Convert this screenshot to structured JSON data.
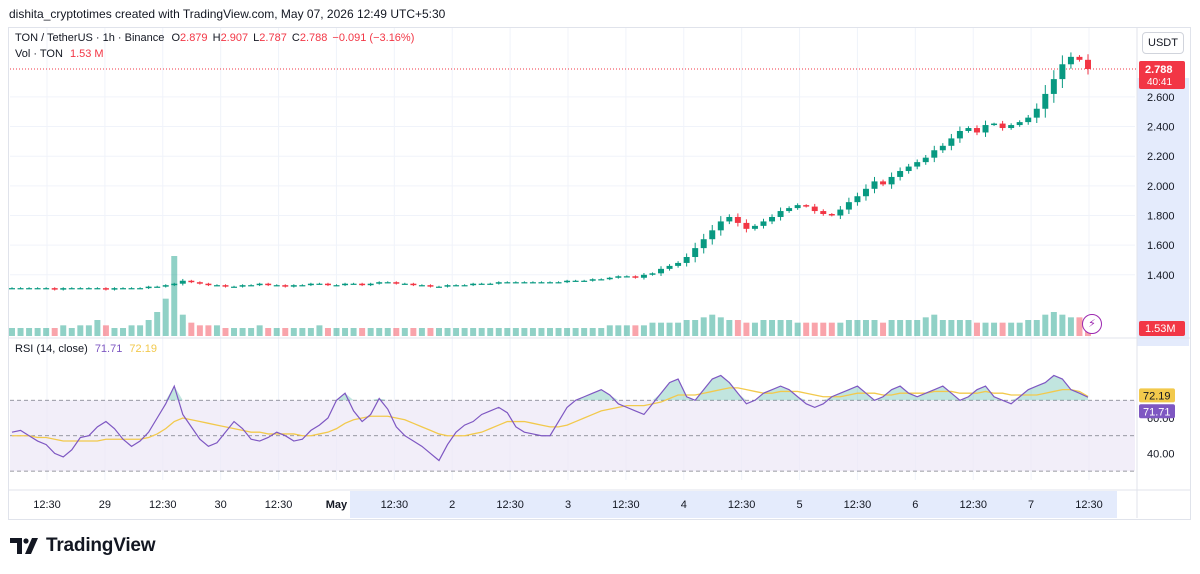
{
  "caption": "dishita_cryptotimes created with TradingView.com, May 07, 2026 12:49 UTC+5:30",
  "legend": {
    "symbol": "TON / TetherUS · 1h · Binance",
    "o_label": "O",
    "o_value": "2.879",
    "h_label": "H",
    "h_value": "2.907",
    "l_label": "L",
    "l_value": "2.787",
    "c_label": "C",
    "c_value": "2.788",
    "change": "−0.091 (−3.16%)",
    "vol_label": "Vol · TON",
    "vol_value": "1.53 M",
    "rsi_label": "RSI (14, close)",
    "rsi_value": "71.71",
    "rsi_ma_value": "72.19"
  },
  "currency_button": "USDT",
  "brand": "TradingView",
  "colors": {
    "up": "#089981",
    "down": "#f23645",
    "rsi_line": "#7e57c2",
    "rsi_ma": "#f2c94c",
    "rsi_band": "#ede7f6",
    "axis_text": "#131722",
    "grid": "#f0f3fa"
  },
  "chart_data": {
    "type": "candlestick",
    "price_axis": {
      "ticks": [
        "1.400",
        "1.600",
        "1.800",
        "2.000",
        "2.200",
        "2.400",
        "2.600"
      ],
      "min": 1.23,
      "max": 2.95
    },
    "price_label": {
      "value": "2.788",
      "countdown": "40:41"
    },
    "volume_label": "1.53M",
    "x_axis_labels": [
      "12:30",
      "29",
      "12:30",
      "30",
      "12:30",
      "May",
      "12:30",
      "2",
      "12:30",
      "3",
      "12:30",
      "4",
      "12:30",
      "5",
      "12:30",
      "6",
      "12:30",
      "7",
      "12:30"
    ],
    "close_series": [
      1.31,
      1.31,
      1.31,
      1.31,
      1.31,
      1.3,
      1.31,
      1.31,
      1.31,
      1.31,
      1.31,
      1.3,
      1.31,
      1.31,
      1.31,
      1.31,
      1.32,
      1.32,
      1.33,
      1.34,
      1.36,
      1.35,
      1.34,
      1.33,
      1.33,
      1.32,
      1.32,
      1.33,
      1.33,
      1.34,
      1.33,
      1.33,
      1.32,
      1.33,
      1.33,
      1.34,
      1.34,
      1.33,
      1.33,
      1.34,
      1.34,
      1.33,
      1.34,
      1.35,
      1.35,
      1.34,
      1.34,
      1.33,
      1.33,
      1.32,
      1.32,
      1.33,
      1.33,
      1.33,
      1.34,
      1.34,
      1.34,
      1.35,
      1.35,
      1.35,
      1.35,
      1.35,
      1.35,
      1.35,
      1.35,
      1.36,
      1.36,
      1.36,
      1.37,
      1.37,
      1.38,
      1.39,
      1.39,
      1.38,
      1.4,
      1.41,
      1.44,
      1.46,
      1.48,
      1.52,
      1.58,
      1.64,
      1.7,
      1.76,
      1.79,
      1.75,
      1.71,
      1.73,
      1.76,
      1.79,
      1.83,
      1.85,
      1.87,
      1.86,
      1.83,
      1.81,
      1.8,
      1.84,
      1.89,
      1.93,
      1.98,
      2.03,
      2.01,
      2.06,
      2.1,
      2.13,
      2.16,
      2.19,
      2.24,
      2.27,
      2.32,
      2.37,
      2.39,
      2.36,
      2.41,
      2.42,
      2.39,
      2.41,
      2.43,
      2.46,
      2.52,
      2.62,
      2.72,
      2.82,
      2.87,
      2.85,
      2.788
    ],
    "volume_series": [
      3,
      3,
      3,
      3,
      3,
      3,
      4,
      3,
      4,
      4,
      6,
      4,
      3,
      3,
      4,
      4,
      6,
      9,
      14,
      30,
      8,
      5,
      4,
      4,
      4,
      3,
      3,
      3,
      3,
      4,
      3,
      3,
      3,
      3,
      3,
      3,
      4,
      3,
      3,
      3,
      3,
      3,
      3,
      3,
      3,
      3,
      3,
      3,
      3,
      3,
      3,
      3,
      3,
      3,
      3,
      3,
      3,
      3,
      3,
      3,
      3,
      3,
      3,
      3,
      3,
      3,
      3,
      3,
      3,
      3,
      4,
      4,
      4,
      4,
      4,
      5,
      5,
      5,
      5,
      6,
      6,
      7,
      8,
      7,
      6,
      6,
      5,
      5,
      6,
      6,
      6,
      6,
      5,
      5,
      5,
      5,
      5,
      5,
      6,
      6,
      6,
      6,
      5,
      6,
      6,
      6,
      6,
      7,
      8,
      6,
      6,
      6,
      6,
      5,
      5,
      5,
      5,
      5,
      5,
      6,
      6,
      8,
      9,
      8,
      7,
      7,
      6
    ],
    "rsi_series": [
      52,
      53,
      50,
      47,
      45,
      40,
      38,
      42,
      49,
      50,
      55,
      58,
      54,
      48,
      44,
      47,
      52,
      60,
      68,
      78,
      62,
      55,
      48,
      44,
      46,
      52,
      58,
      54,
      48,
      47,
      49,
      52,
      50,
      47,
      48,
      53,
      56,
      60,
      70,
      74,
      64,
      58,
      62,
      71,
      65,
      55,
      50,
      47,
      44,
      40,
      36,
      45,
      52,
      56,
      58,
      62,
      64,
      66,
      63,
      55,
      52,
      51,
      50,
      50,
      58,
      66,
      70,
      72,
      74,
      76,
      73,
      68,
      66,
      64,
      62,
      68,
      74,
      80,
      82,
      72,
      70,
      76,
      82,
      84,
      80,
      74,
      68,
      70,
      74,
      76,
      78,
      76,
      72,
      68,
      66,
      68,
      72,
      74,
      76,
      78,
      74,
      70,
      72,
      76,
      78,
      74,
      72,
      74,
      76,
      78,
      74,
      70,
      72,
      76,
      78,
      72,
      70,
      68,
      72,
      76,
      78,
      80,
      84,
      82,
      76,
      74,
      71.71
    ],
    "rsi_ma_series": [
      50,
      50,
      50,
      49,
      49,
      48,
      47,
      47,
      47,
      47,
      47,
      48,
      48,
      48,
      48,
      48,
      49,
      51,
      54,
      58,
      60,
      59,
      58,
      57,
      56,
      55,
      54,
      53,
      52,
      52,
      51,
      51,
      51,
      51,
      50,
      50,
      51,
      52,
      54,
      57,
      59,
      60,
      61,
      61,
      61,
      60,
      59,
      57,
      55,
      53,
      51,
      50,
      50,
      50,
      51,
      52,
      54,
      56,
      58,
      58,
      58,
      57,
      56,
      55,
      55,
      56,
      58,
      60,
      62,
      64,
      65,
      66,
      67,
      67,
      67,
      68,
      69,
      71,
      73,
      73,
      73,
      74,
      75,
      76,
      77,
      77,
      76,
      75,
      74,
      74,
      75,
      75,
      75,
      74,
      73,
      72,
      72,
      72,
      73,
      74,
      74,
      74,
      73,
      73,
      74,
      74,
      74,
      74,
      75,
      75,
      75,
      74,
      74,
      74,
      75,
      74,
      74,
      73,
      73,
      73,
      73,
      74,
      75,
      76,
      76,
      75,
      72.19
    ],
    "rsi_levels": {
      "upper": 70,
      "middle": 50,
      "lower": 30
    },
    "rsi_axis": {
      "ticks": [
        "60.00",
        "40.00"
      ],
      "min": 25,
      "max": 95
    },
    "rsi_labels": {
      "rsi": "71.71",
      "ma": "72.19"
    }
  }
}
